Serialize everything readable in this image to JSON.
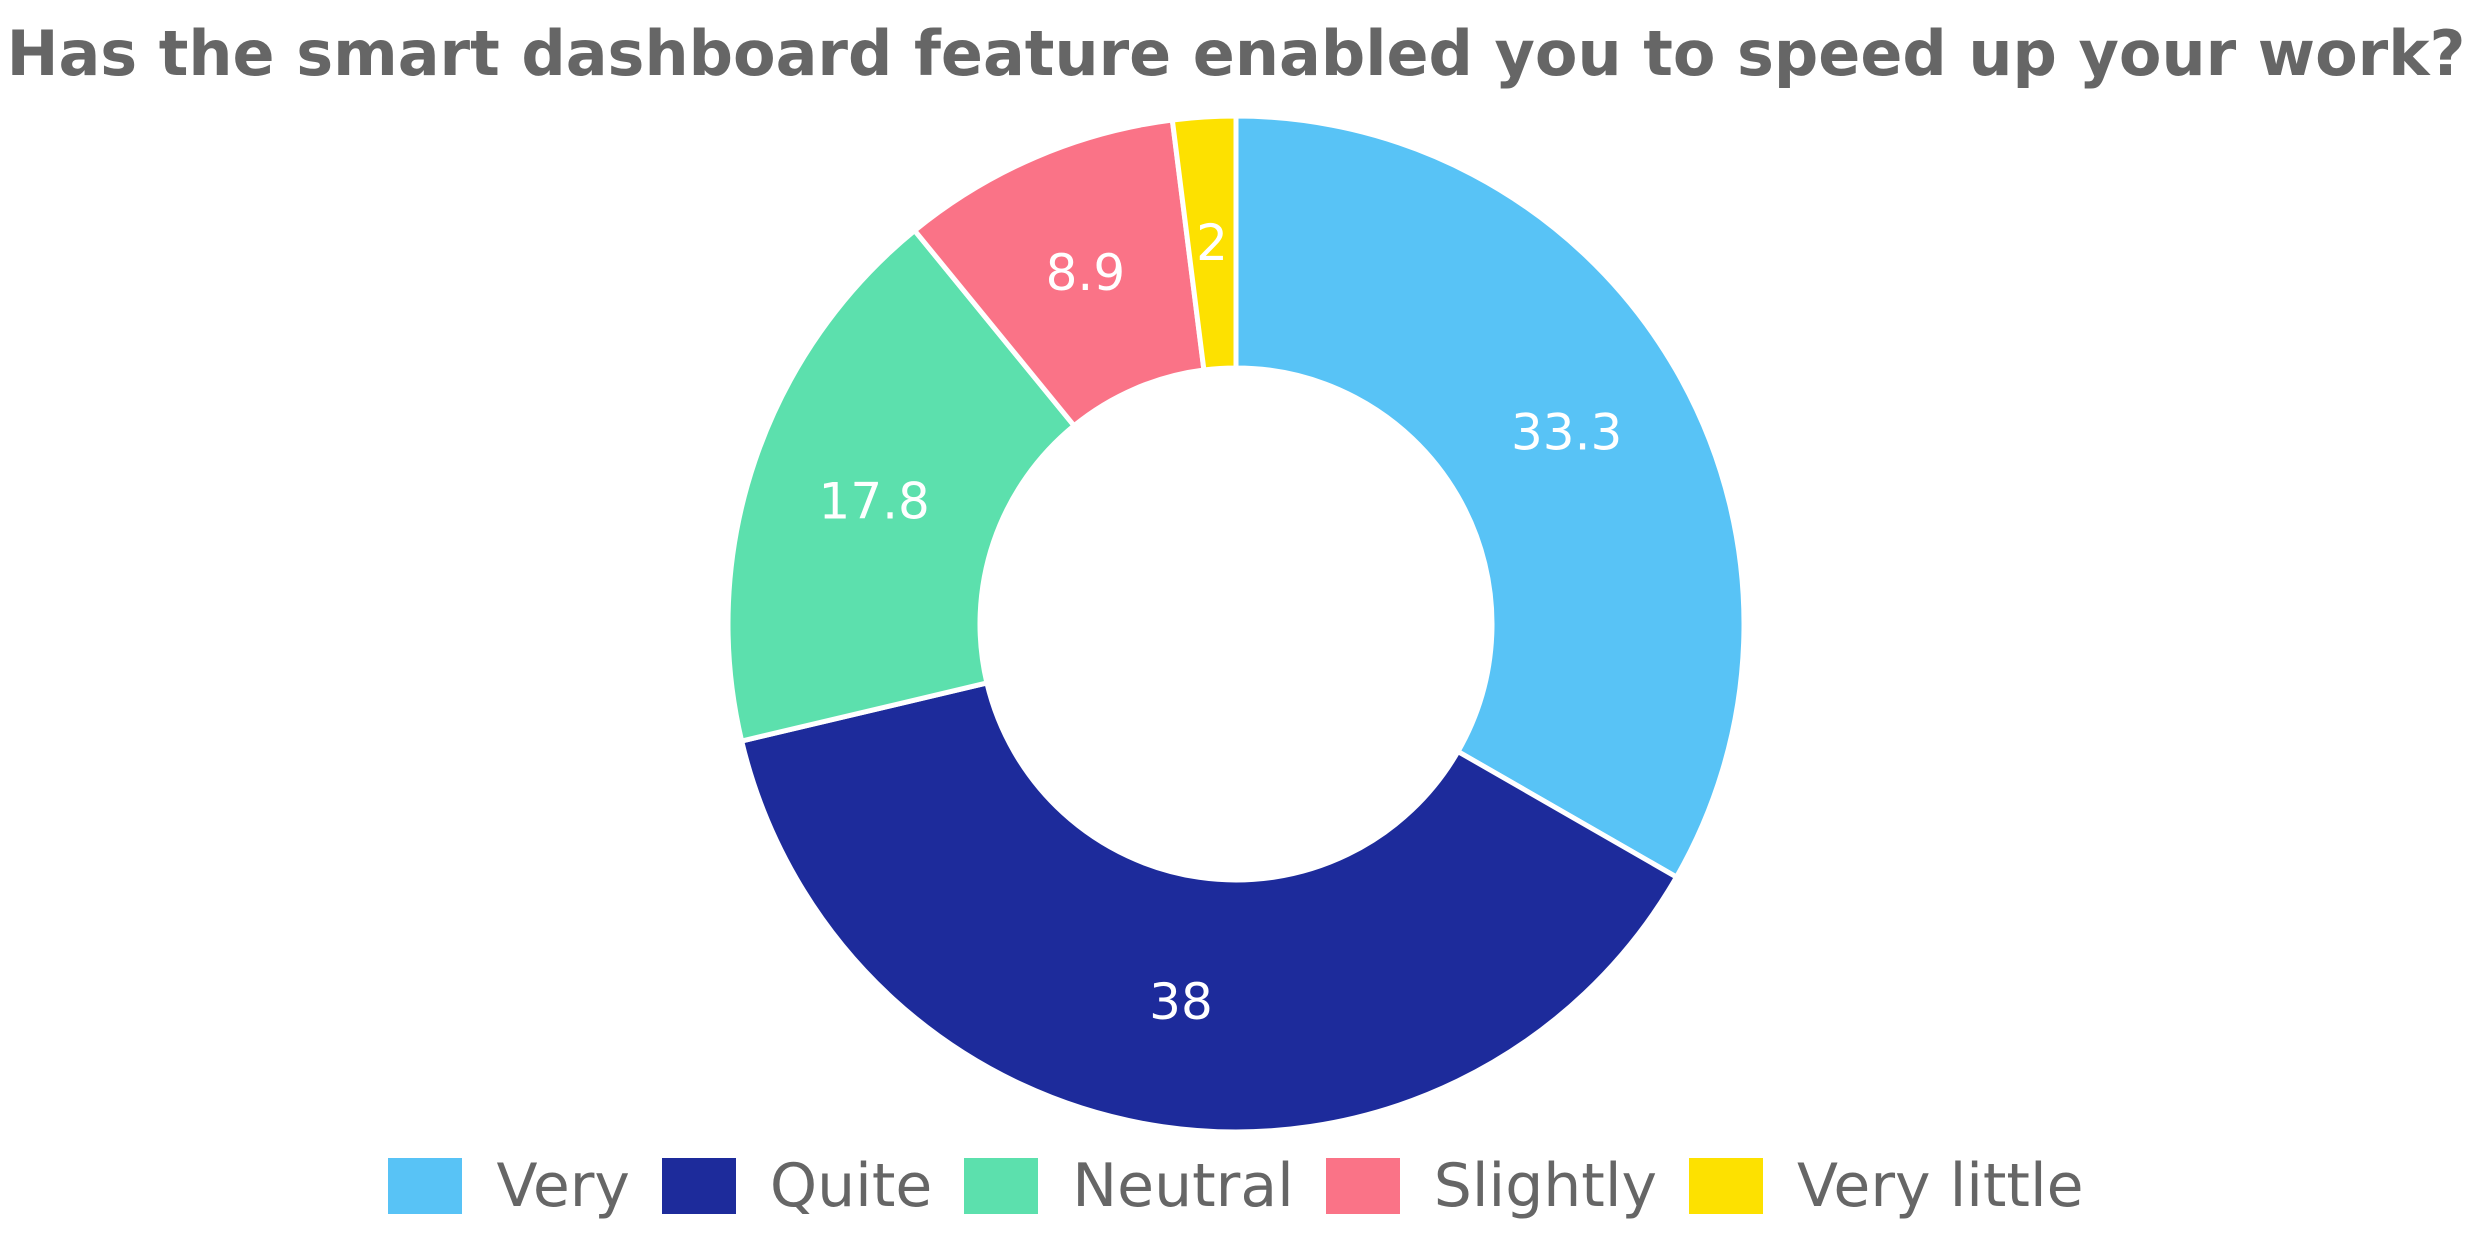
{
  "chart_data": {
    "type": "pie",
    "style": "donut",
    "title": "Has the smart dashboard feature enabled you to speed up your work?",
    "categories": [
      "Very",
      "Quite",
      "Neutral",
      "Slightly",
      "Very little"
    ],
    "values": [
      33.3,
      38,
      17.8,
      8.9,
      2
    ],
    "data_labels": [
      "33.3",
      "38",
      "17.8",
      "8.9",
      "2"
    ],
    "colors": [
      "#58c3f6",
      "#1d2b9b",
      "#5ce0ad",
      "#fa7387",
      "#fde100"
    ],
    "start": "12 o'clock",
    "direction": "clockwise",
    "legend_position": "bottom",
    "label_color": "#ffffff",
    "text_color": "#666666"
  }
}
